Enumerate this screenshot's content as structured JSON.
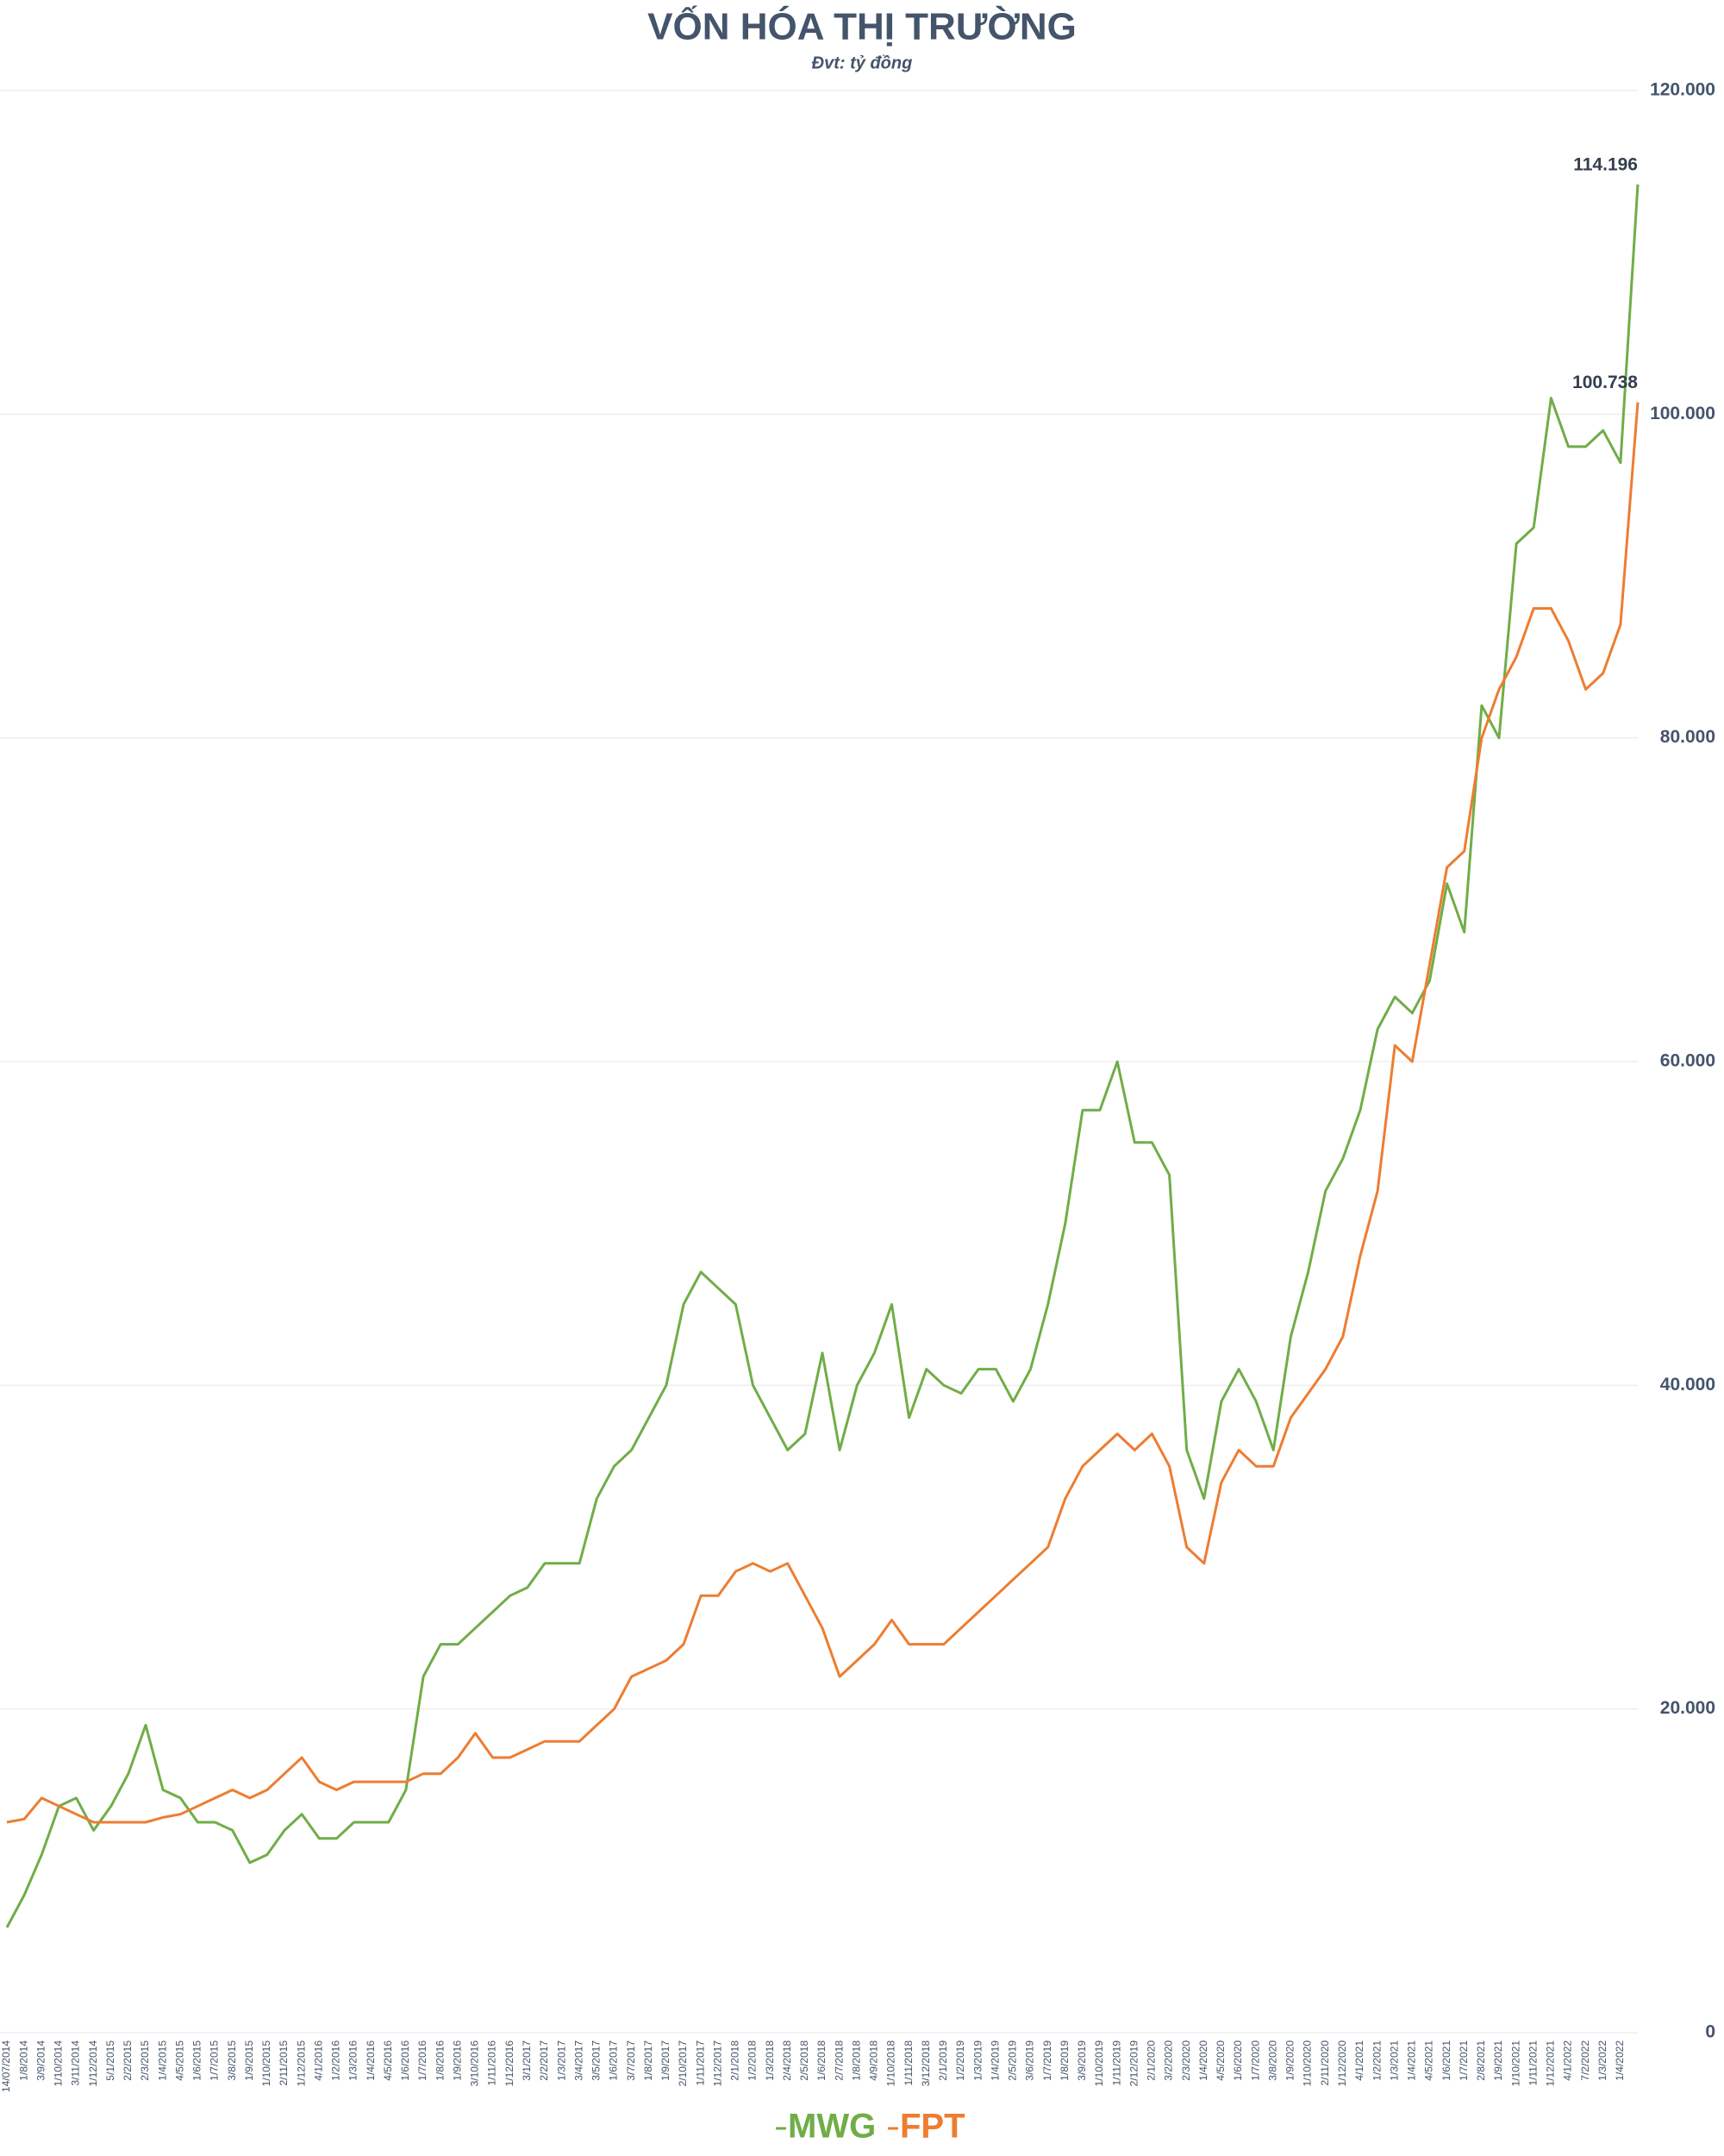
{
  "chart_data": {
    "type": "line",
    "title": "VỐN HÓA THỊ TRƯỜNG",
    "subtitle": "Đvt: tỷ đồng",
    "categories": [
      "14/07/2014",
      "1/8/2014",
      "3/9/2014",
      "1/10/2014",
      "3/11/2014",
      "1/12/2014",
      "5/1/2015",
      "2/2/2015",
      "2/3/2015",
      "1/4/2015",
      "4/5/2015",
      "1/6/2015",
      "1/7/2015",
      "3/8/2015",
      "1/9/2015",
      "1/10/2015",
      "2/11/2015",
      "1/12/2015",
      "4/1/2016",
      "1/2/2016",
      "1/3/2016",
      "1/4/2016",
      "4/5/2016",
      "1/6/2016",
      "1/7/2016",
      "1/8/2016",
      "1/9/2016",
      "3/10/2016",
      "1/11/2016",
      "1/12/2016",
      "3/1/2017",
      "2/2/2017",
      "1/3/2017",
      "3/4/2017",
      "3/5/2017",
      "1/6/2017",
      "3/7/2017",
      "1/8/2017",
      "1/9/2017",
      "2/10/2017",
      "1/11/2017",
      "1/12/2017",
      "2/1/2018",
      "1/2/2018",
      "1/3/2018",
      "2/4/2018",
      "2/5/2018",
      "1/6/2018",
      "2/7/2018",
      "1/8/2018",
      "4/9/2018",
      "1/10/2018",
      "1/11/2018",
      "3/12/2018",
      "2/1/2019",
      "1/2/2019",
      "1/3/2019",
      "1/4/2019",
      "2/5/2019",
      "3/6/2019",
      "1/7/2019",
      "1/8/2019",
      "3/9/2019",
      "1/10/2019",
      "1/11/2019",
      "2/12/2019",
      "2/1/2020",
      "3/2/2020",
      "2/3/2020",
      "1/4/2020",
      "4/5/2020",
      "1/6/2020",
      "1/7/2020",
      "3/8/2020",
      "1/9/2020",
      "1/10/2020",
      "2/11/2020",
      "1/12/2020",
      "4/1/2021",
      "1/2/2021",
      "1/3/2021",
      "1/4/2021",
      "4/5/2021",
      "1/6/2021",
      "1/7/2021",
      "2/8/2021",
      "1/9/2021",
      "1/10/2021",
      "1/11/2021",
      "1/12/2021",
      "4/1/2022",
      "7/2/2022",
      "1/3/2022",
      "1/4/2022",
      null
    ],
    "series": [
      {
        "name": "MWG",
        "color": "#70ad47",
        "values": [
          6500,
          8500,
          11000,
          14000,
          14500,
          12500,
          14000,
          16000,
          19000,
          15000,
          14500,
          13000,
          13000,
          12500,
          10500,
          11000,
          12500,
          13500,
          12000,
          12000,
          13000,
          13000,
          13000,
          15000,
          22000,
          24000,
          24000,
          25000,
          26000,
          27000,
          27500,
          29000,
          29000,
          29000,
          33000,
          35000,
          36000,
          38000,
          40000,
          45000,
          47000,
          46000,
          45000,
          40000,
          38000,
          36000,
          37000,
          42000,
          36000,
          40000,
          42000,
          45000,
          38000,
          41000,
          40000,
          39500,
          41000,
          41000,
          39000,
          41000,
          45000,
          50000,
          57000,
          57000,
          60000,
          55000,
          55000,
          53000,
          36000,
          33000,
          39000,
          41000,
          39000,
          36000,
          43000,
          47000,
          52000,
          54000,
          57000,
          62000,
          64000,
          63000,
          65000,
          71000,
          68000,
          82000,
          80000,
          92000,
          93000,
          101000,
          98000,
          98000,
          99000,
          97000,
          114196
        ],
        "value_labels": [
          null,
          null,
          null,
          null,
          null,
          null,
          null,
          null,
          null,
          null,
          null,
          null,
          null,
          null,
          null,
          null,
          null,
          null,
          null,
          null,
          null,
          null,
          null,
          null,
          null,
          null,
          null,
          null,
          null,
          null,
          null,
          null,
          null,
          null,
          null,
          null,
          null,
          null,
          null,
          null,
          null,
          null,
          null,
          null,
          null,
          null,
          null,
          null,
          null,
          null,
          null,
          null,
          null,
          null,
          null,
          null,
          null,
          null,
          null,
          null,
          null,
          null,
          null,
          null,
          null,
          null,
          null,
          null,
          null,
          null,
          null,
          null,
          null,
          null,
          null,
          null,
          null,
          null,
          null,
          null,
          null,
          null,
          null,
          null,
          null,
          null,
          null,
          null,
          null,
          null,
          null,
          null,
          null,
          null,
          "114.196"
        ]
      },
      {
        "name": "FPT",
        "color": "#ed7d31",
        "values": [
          13000,
          13200,
          14500,
          14000,
          13500,
          13000,
          13000,
          13000,
          13000,
          13300,
          13500,
          14000,
          14500,
          15000,
          14500,
          15000,
          16000,
          17000,
          15500,
          15000,
          15500,
          15500,
          15500,
          15500,
          16000,
          16000,
          17000,
          18500,
          17000,
          17000,
          17500,
          18000,
          18000,
          18000,
          19000,
          20000,
          22000,
          22500,
          23000,
          24000,
          27000,
          27000,
          28500,
          29000,
          28500,
          29000,
          27000,
          25000,
          22000,
          23000,
          24000,
          25500,
          24000,
          24000,
          24000,
          25000,
          26000,
          27000,
          28000,
          29000,
          30000,
          33000,
          35000,
          36000,
          37000,
          36000,
          37000,
          35000,
          30000,
          29000,
          34000,
          36000,
          35000,
          35000,
          38000,
          39500,
          41000,
          43000,
          48000,
          52000,
          61000,
          60000,
          66000,
          72000,
          73000,
          80000,
          83000,
          85000,
          88000,
          88000,
          86000,
          83000,
          84000,
          87000,
          100738
        ],
        "value_labels": [
          null,
          null,
          null,
          null,
          null,
          null,
          null,
          null,
          null,
          null,
          null,
          null,
          null,
          null,
          null,
          null,
          null,
          null,
          null,
          null,
          null,
          null,
          null,
          null,
          null,
          null,
          null,
          null,
          null,
          null,
          null,
          null,
          null,
          null,
          null,
          null,
          null,
          null,
          null,
          null,
          null,
          null,
          null,
          null,
          null,
          null,
          null,
          null,
          null,
          null,
          null,
          null,
          null,
          null,
          null,
          null,
          null,
          null,
          null,
          null,
          null,
          null,
          null,
          null,
          null,
          null,
          null,
          null,
          null,
          null,
          null,
          null,
          null,
          null,
          null,
          null,
          null,
          null,
          null,
          null,
          null,
          null,
          null,
          null,
          null,
          null,
          null,
          null,
          null,
          null,
          null,
          null,
          null,
          null,
          "100.738"
        ]
      }
    ],
    "ylim": [
      0,
      120000
    ],
    "yticks": [
      0,
      {
        "value": 20000,
        "label": "20.000"
      },
      {
        "value": 40000,
        "label": "40.000"
      },
      {
        "value": 60000,
        "label": "60.000"
      },
      {
        "value": 80000,
        "label": "80.000"
      },
      {
        "value": 100000,
        "label": "100.000"
      },
      {
        "value": 120000,
        "label": "120.000"
      }
    ],
    "grid": true
  }
}
